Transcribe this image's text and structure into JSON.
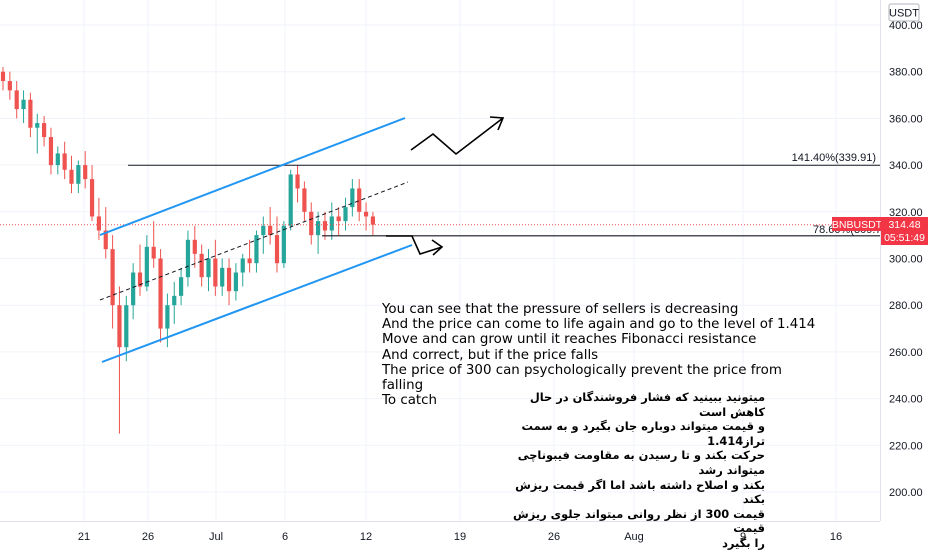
{
  "chart_data": {
    "type": "candlestick",
    "symbol": "BNBUSDT",
    "currency": "USDT",
    "last_price": "314.48",
    "countdown": "05:51:49",
    "ylim": [
      186,
      405
    ],
    "y_ticks": [
      "400.00",
      "380.00",
      "360.00",
      "340.00",
      "320.00",
      "300.00",
      "280.00",
      "260.00",
      "240.00",
      "220.00",
      "200.00"
    ],
    "x_ticks": [
      "21",
      "26",
      "Jul",
      "6",
      "12",
      "19",
      "26",
      "Aug",
      "9",
      "16"
    ],
    "fib_levels": [
      {
        "label": "141.40%(339.91)",
        "value": 339.91
      },
      {
        "label": "78.60%(309.72)",
        "value": 309.72
      }
    ],
    "candles": [
      [
        380.0,
        382.0,
        372.0,
        376.0
      ],
      [
        376.0,
        380.0,
        368.0,
        372.0
      ],
      [
        372.0,
        376.0,
        360.0,
        364.0
      ],
      [
        364.0,
        372.0,
        358.0,
        368.0
      ],
      [
        368.0,
        371.0,
        352.0,
        356.0
      ],
      [
        356.0,
        362.0,
        345.0,
        358.0
      ],
      [
        358.0,
        361.0,
        348.0,
        352.0
      ],
      [
        352.0,
        356.0,
        336.0,
        340.0
      ],
      [
        340.0,
        348.0,
        336.0,
        345.0
      ],
      [
        345.0,
        350.0,
        334.0,
        338.0
      ],
      [
        338.0,
        344.0,
        328.0,
        332.0
      ],
      [
        332.0,
        342.0,
        328.0,
        340.0
      ],
      [
        340.0,
        346.0,
        330.0,
        334.0
      ],
      [
        334.0,
        340.0,
        316.0,
        318.0
      ],
      [
        318.0,
        326.0,
        308.0,
        312.0
      ],
      [
        312.0,
        322.0,
        300.0,
        304.0
      ],
      [
        304.0,
        310.0,
        270.0,
        280.0
      ],
      [
        280.0,
        288.0,
        225.0,
        262.0
      ],
      [
        262.0,
        284.0,
        256.0,
        280.0
      ],
      [
        280.0,
        298.0,
        274.0,
        294.0
      ],
      [
        294.0,
        306.0,
        284.0,
        288.0
      ],
      [
        288.0,
        310.0,
        286.0,
        305.0
      ],
      [
        305.0,
        316.0,
        296.0,
        300.0
      ],
      [
        300.0,
        304.0,
        264.0,
        270.0
      ],
      [
        270.0,
        285.0,
        262.0,
        280.0
      ],
      [
        280.0,
        290.0,
        272.0,
        284.0
      ],
      [
        284.0,
        296.0,
        280.0,
        292.0
      ],
      [
        292.0,
        312.0,
        288.0,
        308.0
      ],
      [
        308.0,
        314.0,
        296.0,
        302.0
      ],
      [
        302.0,
        306.0,
        288.0,
        292.0
      ],
      [
        292.0,
        304.0,
        286.0,
        300.0
      ],
      [
        300.0,
        308.0,
        284.0,
        288.0
      ],
      [
        288.0,
        300.0,
        284.0,
        296.0
      ],
      [
        296.0,
        300.0,
        280.0,
        286.0
      ],
      [
        286.0,
        298.0,
        282.0,
        294.0
      ],
      [
        294.0,
        302.0,
        288.0,
        300.0
      ],
      [
        300.0,
        308.0,
        294.0,
        298.0
      ],
      [
        298.0,
        312.0,
        294.0,
        310.0
      ],
      [
        310.0,
        318.0,
        302.0,
        314.0
      ],
      [
        314.0,
        322.0,
        306.0,
        310.0
      ],
      [
        310.0,
        318.0,
        294.0,
        298.0
      ],
      [
        298.0,
        316.0,
        296.0,
        314.0
      ],
      [
        314.0,
        338.0,
        312.0,
        336.0
      ],
      [
        336.0,
        340.0,
        324.0,
        330.0
      ],
      [
        330.0,
        333.0,
        316.0,
        320.0
      ],
      [
        320.0,
        324.0,
        306.0,
        310.0
      ],
      [
        310.0,
        320.0,
        302.0,
        316.0
      ],
      [
        316.0,
        320.0,
        308.0,
        312.0
      ],
      [
        312.0,
        324.0,
        308.0,
        318.0
      ],
      [
        318.0,
        322.0,
        310.0,
        316.0
      ],
      [
        316.0,
        326.0,
        312.0,
        322.0
      ],
      [
        322.0,
        334.0,
        318.0,
        330.0
      ],
      [
        330.0,
        334.0,
        316.0,
        320.0
      ],
      [
        320.0,
        324.0,
        312.0,
        318.0
      ],
      [
        318.0,
        320.0,
        310.0,
        314.5
      ]
    ]
  },
  "annotations": {
    "english": [
      "You can see that the pressure of sellers is decreasing",
      "And the price can come to life again and go to the level of 1.414",
      "Move and can grow until it reaches Fibonacci resistance",
      "And correct, but if the price falls",
      "The price of 300 can psychologically prevent the price from falling",
      "To catch"
    ],
    "persian": [
      "میتونید ببینید که فشار فروشندگان در حال کاهش است",
      "و قیمت میتواند دوباره جان بگیرد و به سمت تراز1.414",
      "حرکت بکند و تا رسیدن به مقاومت فیبوناچی میتواند رشد",
      "بکند و اصلاح داشته باشد اما اگر قیمت ریزش بکند",
      "قیمت 300 از نظر روانی میتواند جلوی ریزش قیمت",
      "را بگیرد"
    ]
  },
  "colors": {
    "up": "#26a69a",
    "down": "#ef5350",
    "channel": "#2196f3",
    "price_line": "#ef5350",
    "price_label_bg": "#f23645",
    "fib_line": "#131722",
    "axis_text": "#131722",
    "grid": "#f0f3fa"
  }
}
